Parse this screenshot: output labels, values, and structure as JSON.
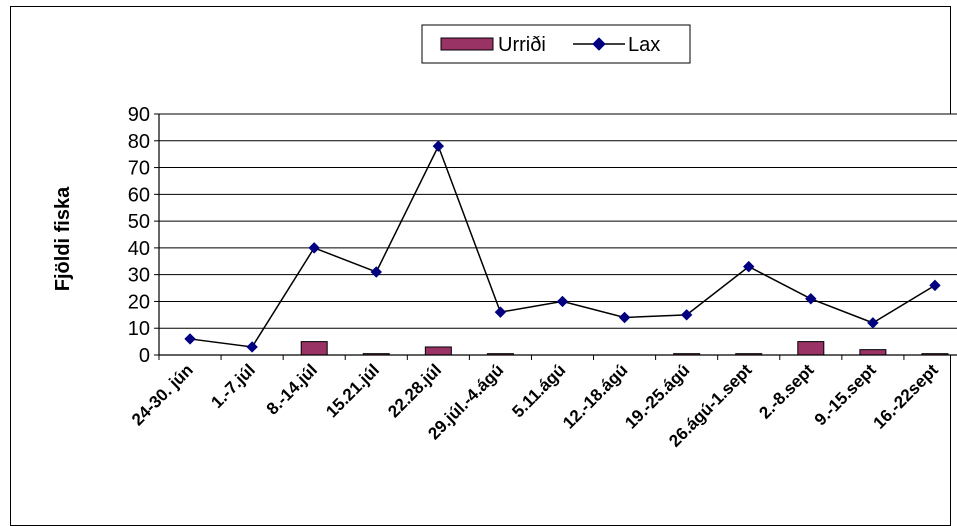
{
  "chart_data": {
    "type": "bar+line",
    "title": "",
    "xlabel": "",
    "ylabel": "Fjöldi fiska",
    "ylim": [
      0,
      90
    ],
    "yticks": [
      0,
      10,
      20,
      30,
      40,
      50,
      60,
      70,
      80,
      90
    ],
    "grid": true,
    "legend_position": "top",
    "categories": [
      "24-30. jún",
      "1.-7.júl",
      "8.-14.júl",
      "15.21.júl",
      "22.28.júl",
      "29.júl.-4.ágú",
      "5.11.ágú",
      "12.-18.ágú",
      "19.-25.ágú",
      "26.ágú-1.sept",
      "2.-8.sept",
      "9.-15.sept",
      "16.-22sept"
    ],
    "series": [
      {
        "name": "Urriði",
        "type": "bar",
        "color": "#993366",
        "values": [
          0,
          0,
          5,
          0.5,
          3,
          0.5,
          0,
          0,
          0.5,
          0.5,
          5,
          2,
          0.5
        ]
      },
      {
        "name": "Lax",
        "type": "line",
        "color": "#000080",
        "values": [
          6,
          3,
          40,
          31,
          78,
          16,
          20,
          14,
          15,
          33,
          21,
          12,
          26
        ]
      }
    ]
  }
}
